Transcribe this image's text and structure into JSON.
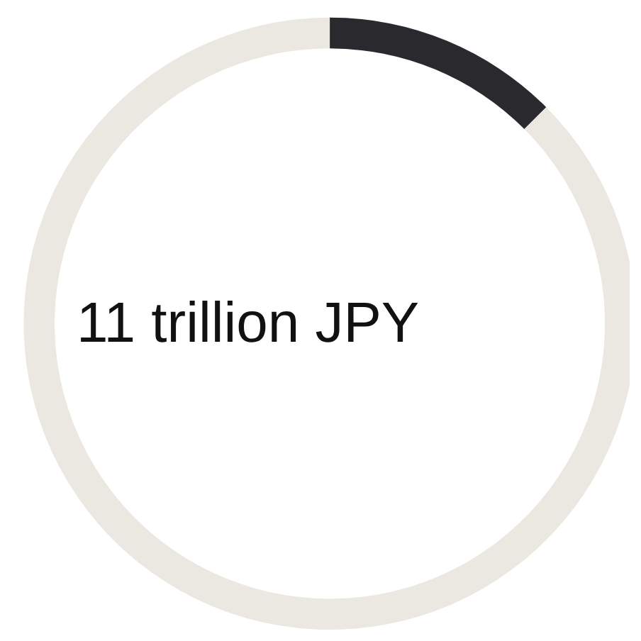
{
  "chart_data": {
    "type": "donut",
    "categories": [
      null,
      null
    ],
    "values": [
      12.5,
      87.5
    ],
    "colors": [
      "#2a2a2e",
      "#ebe8e2"
    ],
    "annotations": [
      "11 trillion JPY"
    ]
  }
}
